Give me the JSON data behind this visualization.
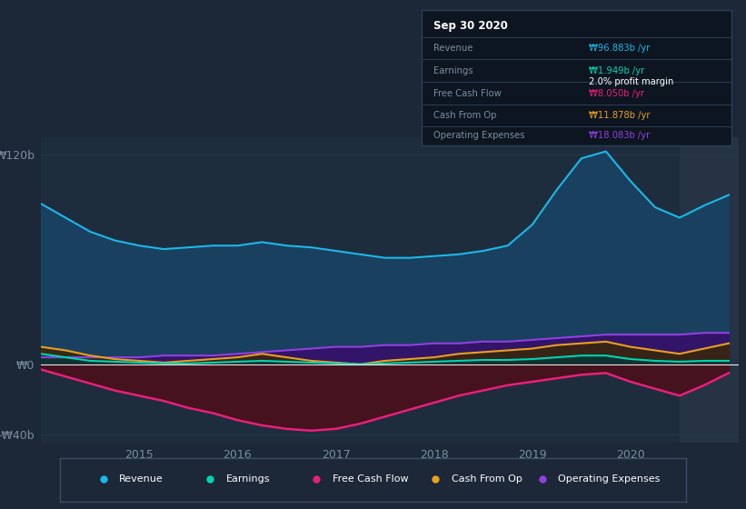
{
  "bg_color": "#1c2737",
  "plot_bg_color": "#1e2d3d",
  "highlight_bg_color": "#253345",
  "grid_color": "#2a3f55",
  "text_color": "#7a8fa0",
  "ylabel_top": "₩120b",
  "ylabel_zero": "₩0",
  "ylabel_bottom": "-₩40b",
  "years": [
    2014.0,
    2014.25,
    2014.5,
    2014.75,
    2015.0,
    2015.25,
    2015.5,
    2015.75,
    2016.0,
    2016.25,
    2016.5,
    2016.75,
    2017.0,
    2017.25,
    2017.5,
    2017.75,
    2018.0,
    2018.25,
    2018.5,
    2018.75,
    2019.0,
    2019.25,
    2019.5,
    2019.75,
    2020.0,
    2020.25,
    2020.5,
    2020.75,
    2021.0
  ],
  "revenue": [
    92,
    84,
    76,
    71,
    68,
    66,
    67,
    68,
    68,
    70,
    68,
    67,
    65,
    63,
    61,
    61,
    62,
    63,
    65,
    68,
    80,
    100,
    118,
    122,
    105,
    90,
    84,
    91,
    97
  ],
  "earnings": [
    6,
    4,
    2,
    1.5,
    1,
    0.5,
    0.5,
    1,
    1.5,
    2,
    1.5,
    1,
    0.5,
    0,
    0.5,
    1,
    1.5,
    2,
    2.5,
    2.5,
    3,
    4,
    5,
    5,
    3,
    2,
    1.5,
    2,
    2
  ],
  "free_cash_flow": [
    -3,
    -7,
    -11,
    -15,
    -18,
    -21,
    -25,
    -28,
    -32,
    -35,
    -37,
    -38,
    -37,
    -34,
    -30,
    -26,
    -22,
    -18,
    -15,
    -12,
    -10,
    -8,
    -6,
    -5,
    -10,
    -14,
    -18,
    -12,
    -5
  ],
  "cash_from_op": [
    10,
    8,
    5,
    3,
    2,
    1,
    2,
    3,
    4,
    6,
    4,
    2,
    1,
    0,
    2,
    3,
    4,
    6,
    7,
    8,
    9,
    11,
    12,
    13,
    10,
    8,
    6,
    9,
    12
  ],
  "operating_expenses": [
    4,
    4,
    4,
    4,
    4,
    5,
    5,
    5,
    6,
    7,
    8,
    9,
    10,
    10,
    11,
    11,
    12,
    12,
    13,
    13,
    14,
    15,
    16,
    17,
    17,
    17,
    17,
    18,
    18
  ],
  "revenue_color": "#1cb8e8",
  "revenue_fill": "#1a4060",
  "earnings_color": "#00d4b0",
  "earnings_fill": "#0a3535",
  "free_cash_flow_color": "#e8207a",
  "free_cash_flow_fill": "#4a0f1a",
  "cash_from_op_color": "#e8a020",
  "cash_from_op_fill": "#3a2808",
  "operating_expenses_color": "#9040e0",
  "operating_expenses_fill": "#35106a",
  "tooltip_bg": "#0d1520",
  "tooltip_border": "#2a3f55",
  "highlight_start": 2020.5,
  "highlight_end": 2021.1,
  "x_ticks": [
    2015,
    2016,
    2017,
    2018,
    2019,
    2020
  ],
  "ylim": [
    -45,
    130
  ],
  "xlim": [
    2014.0,
    2021.1
  ],
  "legend_border": "#3a4f65",
  "legend_bg": "#1c2737"
}
